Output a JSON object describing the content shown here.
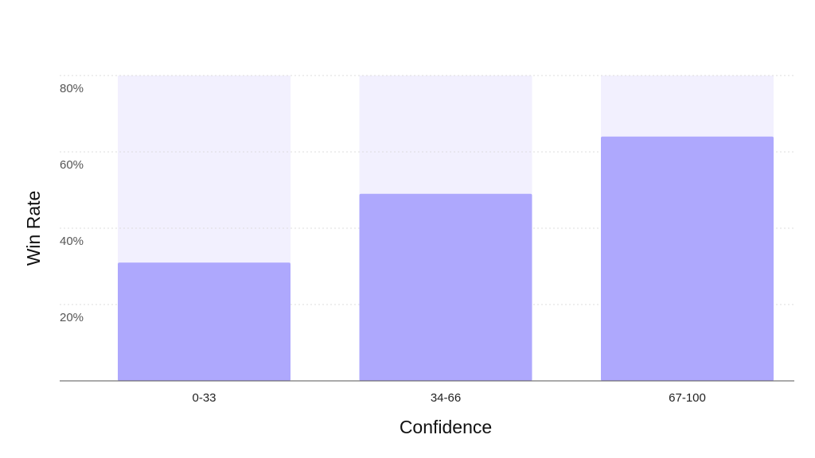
{
  "chart_data": {
    "type": "bar",
    "x_label": "Confidence",
    "y_label": "Win Rate",
    "categories": [
      "0-33",
      "34-66",
      "67-100"
    ],
    "values": [
      31,
      49,
      64
    ],
    "color": "#aea8fd",
    "track_color": "#f2f0fe",
    "ylim": [
      0,
      80
    ],
    "yticks": [
      {
        "value": 20,
        "label": "20%"
      },
      {
        "value": 40,
        "label": "40%"
      },
      {
        "value": 60,
        "label": "60%"
      },
      {
        "value": 80,
        "label": "80%"
      }
    ],
    "grid": true
  }
}
